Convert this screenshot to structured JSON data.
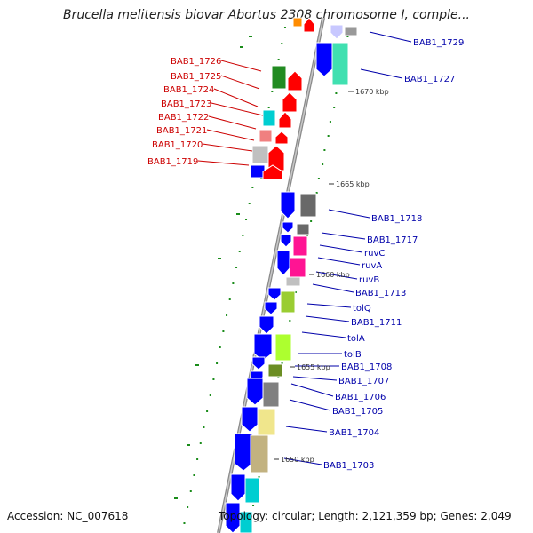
{
  "title": "Brucella melitensis biovar Abortus 2308 chromosome I, comple...",
  "footer": {
    "accession": "Accession: NC_007618",
    "topology": "Topology: circular; Length: 2,121,359 bp; Genes: 2,049"
  },
  "colors": {
    "reverse_label": "#cc0000",
    "forward_label": "#0000aa",
    "backbone": "#808080",
    "tick": "#1a8c1a"
  },
  "scale_labels": [
    "1670 kbp",
    "1665 kbp",
    "1660 kbp",
    "1655 kbp",
    "1650 kbp"
  ],
  "genes_reverse": [
    "BAB1_1726",
    "BAB1_1725",
    "BAB1_1724",
    "BAB1_1723",
    "BAB1_1722",
    "BAB1_1721",
    "BAB1_1720",
    "BAB1_1719"
  ],
  "genes_forward": [
    "BAB1_1729",
    "BAB1_1727",
    "BAB1_1718",
    "BAB1_1717",
    "ruvC",
    "ruvA",
    "ruvB",
    "BAB1_1713",
    "tolQ",
    "BAB1_1711",
    "tolA",
    "tolB",
    "BAB1_1708",
    "BAB1_1707",
    "BAB1_1706",
    "BAB1_1705",
    "BAB1_1704",
    "BAB1_1703"
  ]
}
